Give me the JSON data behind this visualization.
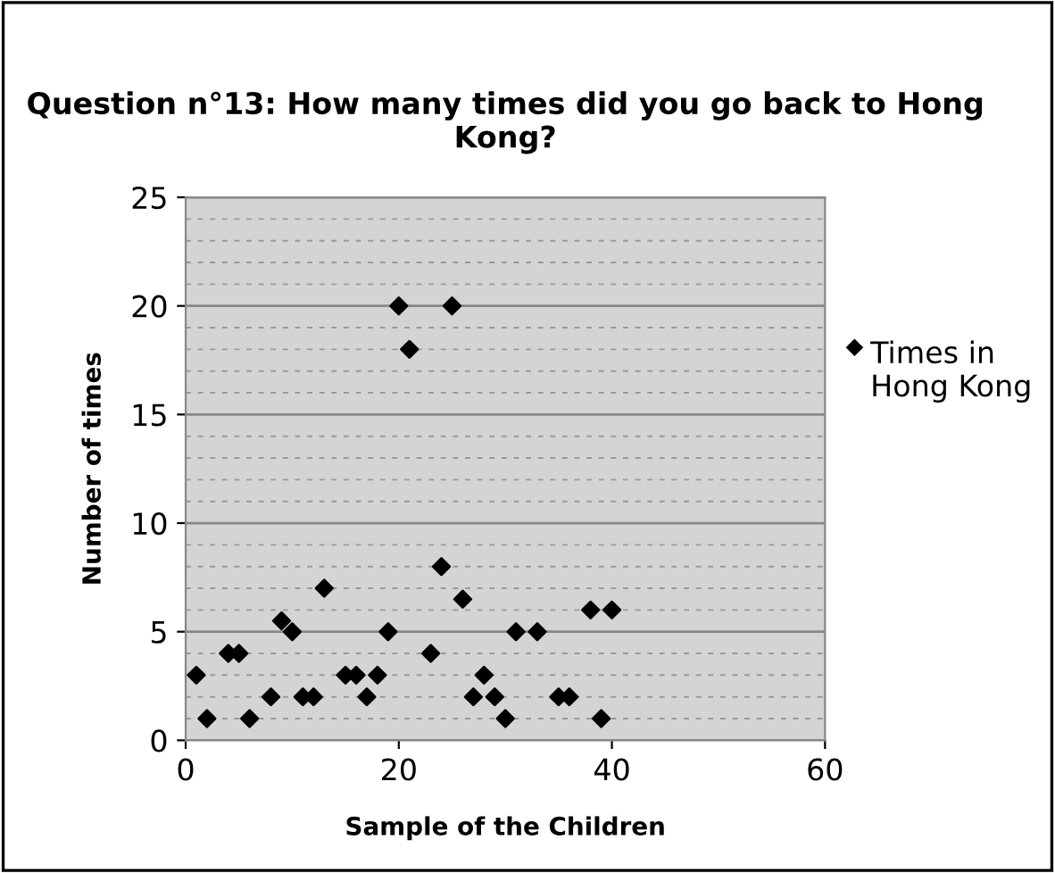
{
  "chart_data": {
    "type": "scatter",
    "title": "Question n°13: How many times did you go back to Hong Kong?",
    "xlabel": "Sample of the Children",
    "ylabel": "Number of times",
    "x": [
      1,
      2,
      4,
      5,
      6,
      8,
      9,
      10,
      11,
      12,
      13,
      15,
      16,
      17,
      18,
      19,
      20,
      21,
      23,
      24,
      25,
      26,
      27,
      28,
      29,
      30,
      31,
      33,
      35,
      36,
      38,
      39,
      40
    ],
    "series": [
      {
        "name": "Times in Hong Kong",
        "color": "#000000",
        "values": [
          3,
          1,
          4,
          4,
          1,
          2,
          5.5,
          5,
          2,
          2,
          7,
          3,
          3,
          2,
          3,
          5,
          20,
          18,
          4,
          8,
          20,
          6.5,
          2,
          3,
          2,
          1,
          5,
          5,
          2,
          2,
          6,
          1,
          6
        ]
      }
    ],
    "xlim": [
      0,
      60
    ],
    "xticks": [
      0,
      20,
      40,
      60
    ],
    "ylim": [
      0,
      25
    ],
    "yticks": [
      0,
      5,
      10,
      15,
      20,
      25
    ],
    "grid": "y",
    "legend": "right",
    "marker": "diamond"
  }
}
